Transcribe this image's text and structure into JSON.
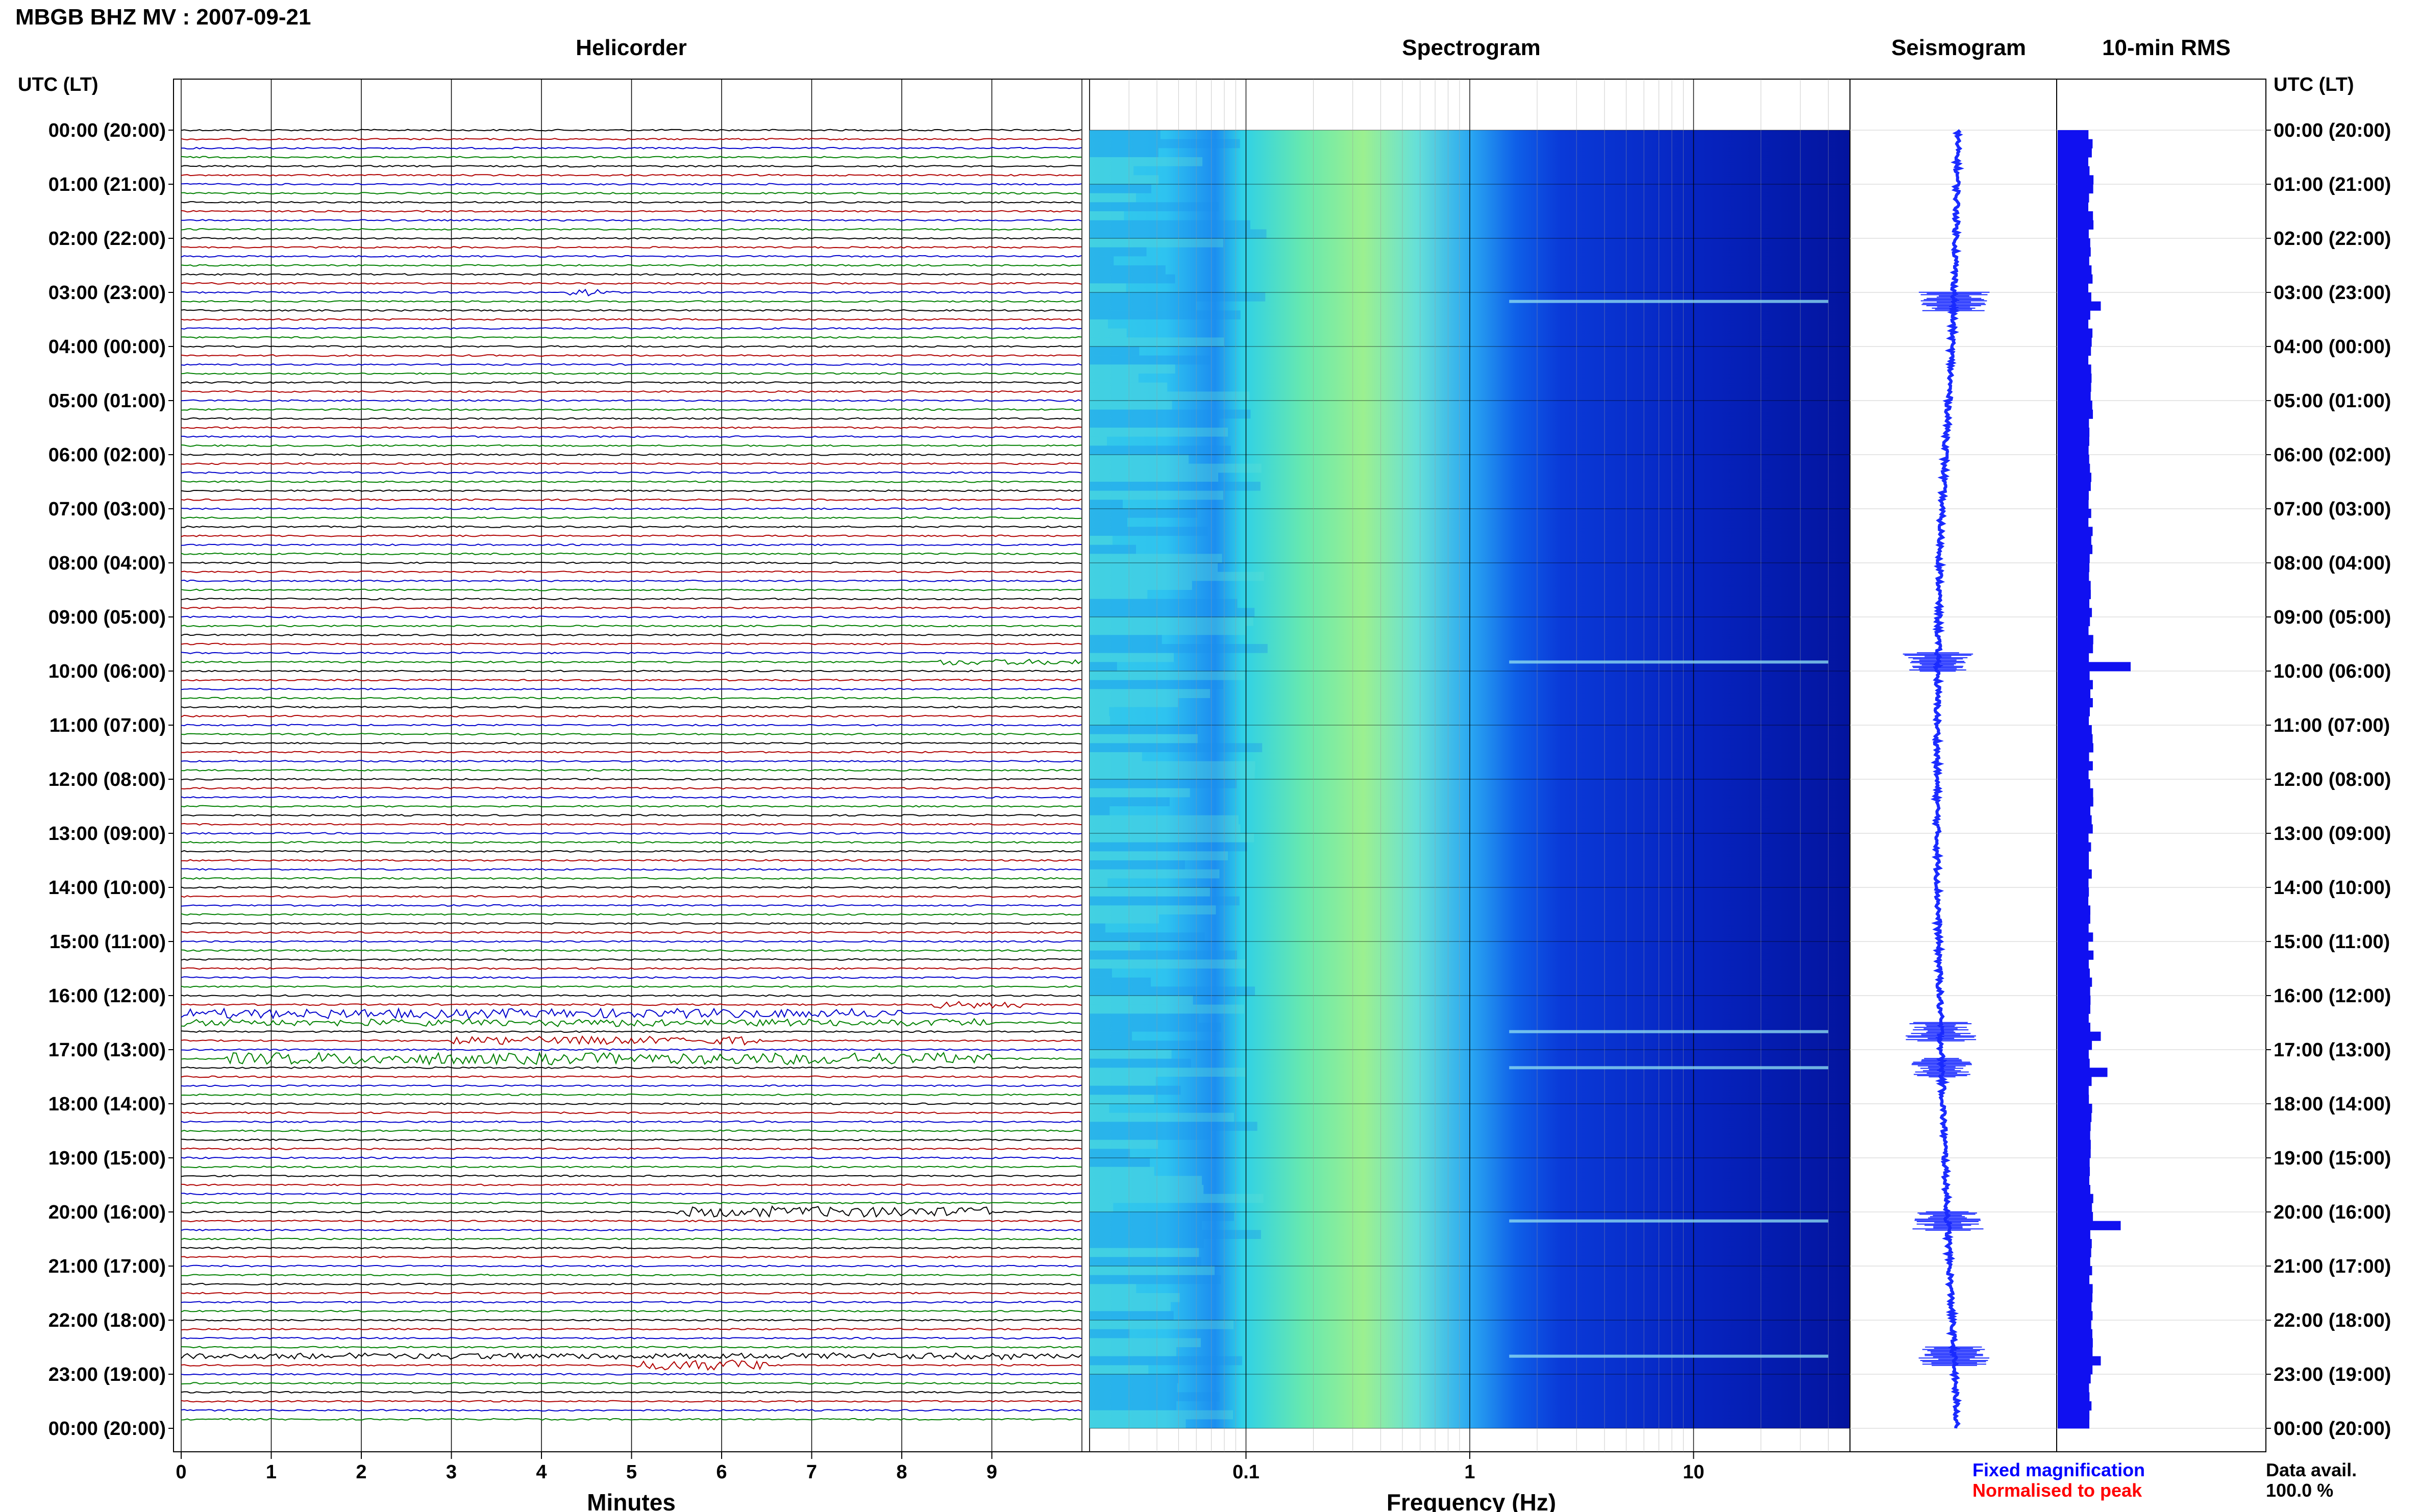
{
  "header": {
    "title": "MBGB BHZ MV : 2007-09-21"
  },
  "panels": {
    "helicorder": "Helicorder",
    "spectrogram": "Spectrogram",
    "seismogram": "Seismogram",
    "rms": "10-min RMS"
  },
  "axes": {
    "left_header": "UTC (LT)",
    "right_header": "UTC (LT)",
    "minutes_label": "Minutes",
    "frequency_label": "Frequency (Hz)"
  },
  "legend": {
    "fixed": "Fixed magnification",
    "normalised": "Normalised to peak",
    "fixed_color": "#0000ff",
    "normalised_color": "#ff0000"
  },
  "availability": {
    "label": "Data avail.",
    "value": "100.0 %"
  },
  "chart_data": {
    "type": "heatmap",
    "station": "MBGB",
    "channel": "BHZ",
    "network": "MV",
    "date": "2007-09-21",
    "time_labels": [
      "00:00 (20:00)",
      "01:00 (21:00)",
      "02:00 (22:00)",
      "03:00 (23:00)",
      "04:00 (00:00)",
      "05:00 (01:00)",
      "06:00 (02:00)",
      "07:00 (03:00)",
      "08:00 (04:00)",
      "09:00 (05:00)",
      "10:00 (06:00)",
      "11:00 (07:00)",
      "12:00 (08:00)",
      "13:00 (09:00)",
      "14:00 (10:00)",
      "15:00 (11:00)",
      "16:00 (12:00)",
      "17:00 (13:00)",
      "18:00 (14:00)",
      "19:00 (15:00)",
      "20:00 (16:00)",
      "21:00 (17:00)",
      "22:00 (18:00)",
      "23:00 (19:00)",
      "00:00 (20:00)"
    ],
    "helicorder": {
      "xlabel": "Minutes",
      "x_ticks": [
        "0",
        "1",
        "2",
        "3",
        "4",
        "5",
        "6",
        "7",
        "8",
        "9"
      ],
      "xlim": [
        0,
        10
      ],
      "row_minutes": 10,
      "trace_colors": [
        "#000000",
        "#b00000",
        "#0000cc",
        "#008000"
      ],
      "events": [
        {
          "utc": "03:00",
          "minute_start": 4.3,
          "minute_end": 4.8,
          "amplitude": 0.5
        },
        {
          "utc": "09:50",
          "minute_start": 8.4,
          "minute_end": 10.0,
          "amplitude": 0.5
        },
        {
          "utc": "16:10",
          "minute_start": 8.3,
          "minute_end": 9.4,
          "amplitude": 0.6
        },
        {
          "utc": "16:20",
          "minute_start": 0.0,
          "minute_end": 8.0,
          "amplitude": 0.8
        },
        {
          "utc": "16:30",
          "minute_start": 0.0,
          "minute_end": 9.0,
          "amplitude": 0.6
        },
        {
          "utc": "16:50",
          "minute_start": 3.0,
          "minute_end": 6.5,
          "amplitude": 0.7
        },
        {
          "utc": "17:10",
          "minute_start": 0.5,
          "minute_end": 9.0,
          "amplitude": 1.0
        },
        {
          "utc": "20:00",
          "minute_start": 5.5,
          "minute_end": 9.0,
          "amplitude": 0.9
        },
        {
          "utc": "22:40",
          "minute_start": 0.0,
          "minute_end": 10.0,
          "amplitude": 0.5
        },
        {
          "utc": "22:50",
          "minute_start": 5.0,
          "minute_end": 6.5,
          "amplitude": 0.9
        }
      ]
    },
    "spectrogram": {
      "xlabel": "Frequency (Hz)",
      "x_scale": "log",
      "xlim": [
        0.02,
        50
      ],
      "x_ticks": [
        "0.1",
        "1",
        "10"
      ],
      "peak_frequency_hz": 0.3
    },
    "seismogram": {
      "transients_utc": [
        "03:10",
        "09:50",
        "16:40",
        "17:20",
        "20:10",
        "22:40"
      ]
    },
    "rms": {
      "interval_minutes": 10,
      "baseline": 1.0,
      "peaks": [
        {
          "utc": "03:10",
          "value": 1.3
        },
        {
          "utc": "09:50",
          "value": 2.2
        },
        {
          "utc": "16:40",
          "value": 1.3
        },
        {
          "utc": "17:20",
          "value": 1.5
        },
        {
          "utc": "20:10",
          "value": 1.9
        },
        {
          "utc": "22:40",
          "value": 1.3
        }
      ]
    }
  }
}
